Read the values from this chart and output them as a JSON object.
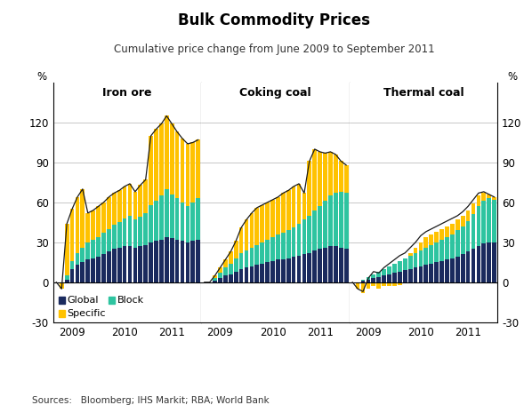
{
  "title": "Bulk Commodity Prices",
  "subtitle": "Cumulative price change from June 2009 to September 2011",
  "source": "Sources:   Bloomberg; IHS Markit; RBA; World Bank",
  "panels": [
    "Iron ore",
    "Coking coal",
    "Thermal coal"
  ],
  "ylim": [
    -30,
    150
  ],
  "yticks": [
    -30,
    0,
    30,
    60,
    90,
    120
  ],
  "colors": {
    "global": "#1a2a5e",
    "block": "#2ec4a0",
    "specific": "#ffc200",
    "line": "#1a1a1a"
  },
  "iron_ore": {
    "global": [
      0,
      0,
      2,
      10,
      13,
      15,
      17,
      18,
      19,
      21,
      23,
      25,
      26,
      27,
      27,
      26,
      27,
      28,
      30,
      31,
      32,
      34,
      33,
      32,
      31,
      30,
      31,
      32
    ],
    "block": [
      0,
      0,
      3,
      6,
      9,
      11,
      13,
      14,
      15,
      16,
      17,
      18,
      19,
      21,
      23,
      21,
      22,
      24,
      28,
      30,
      33,
      36,
      33,
      31,
      29,
      27,
      29,
      31
    ],
    "specific_pos": [
      0,
      0,
      39,
      39,
      42,
      44,
      22,
      22,
      23,
      23,
      24,
      24,
      24,
      24,
      24,
      21,
      24,
      25,
      52,
      54,
      54,
      55,
      53,
      50,
      48,
      47,
      45,
      44
    ],
    "specific_neg": [
      0,
      -5,
      0,
      0,
      0,
      0,
      0,
      0,
      0,
      0,
      0,
      0,
      0,
      0,
      0,
      0,
      0,
      0,
      0,
      0,
      0,
      0,
      0,
      0,
      0,
      0,
      0,
      0
    ],
    "total_line": [
      0,
      -5,
      44,
      55,
      64,
      70,
      52,
      54,
      57,
      60,
      64,
      67,
      69,
      72,
      74,
      68,
      73,
      77,
      110,
      115,
      119,
      125,
      119,
      113,
      108,
      104,
      105,
      107
    ]
  },
  "coking_coal": {
    "global": [
      0,
      0,
      1,
      3,
      5,
      6,
      8,
      10,
      11,
      12,
      13,
      14,
      15,
      16,
      17,
      17,
      18,
      19,
      20,
      21,
      22,
      24,
      25,
      26,
      27,
      27,
      26,
      25
    ],
    "block": [
      0,
      0,
      2,
      4,
      6,
      8,
      10,
      12,
      13,
      14,
      15,
      16,
      17,
      18,
      19,
      20,
      21,
      22,
      24,
      26,
      28,
      30,
      32,
      35,
      38,
      40,
      42,
      42
    ],
    "specific_pos": [
      0,
      0,
      2,
      4,
      6,
      9,
      13,
      19,
      23,
      26,
      28,
      28,
      28,
      28,
      28,
      30,
      30,
      31,
      30,
      20,
      41,
      46,
      41,
      36,
      33,
      29,
      23,
      21
    ],
    "specific_neg": [
      0,
      0,
      0,
      0,
      0,
      0,
      0,
      0,
      0,
      0,
      0,
      0,
      0,
      0,
      0,
      0,
      0,
      0,
      0,
      0,
      0,
      0,
      0,
      0,
      0,
      0,
      0,
      0
    ],
    "total_line": [
      0,
      0,
      5,
      11,
      17,
      23,
      31,
      41,
      47,
      52,
      56,
      58,
      60,
      62,
      64,
      67,
      69,
      72,
      74,
      67,
      91,
      100,
      98,
      97,
      98,
      96,
      91,
      88
    ]
  },
  "thermal_coal": {
    "global": [
      0,
      0,
      1,
      2,
      3,
      4,
      5,
      6,
      7,
      8,
      9,
      10,
      11,
      12,
      13,
      14,
      15,
      16,
      17,
      18,
      19,
      21,
      23,
      25,
      27,
      29,
      30,
      30
    ],
    "block": [
      0,
      0,
      1,
      2,
      3,
      4,
      5,
      6,
      7,
      8,
      9,
      10,
      11,
      12,
      13,
      14,
      15,
      16,
      17,
      18,
      20,
      21,
      23,
      26,
      30,
      32,
      33,
      32
    ],
    "specific_pos": [
      0,
      0,
      0,
      0,
      0,
      0,
      0,
      0,
      0,
      0,
      0,
      2,
      4,
      6,
      8,
      8,
      8,
      8,
      8,
      8,
      8,
      8,
      8,
      8,
      8,
      6,
      3,
      2
    ],
    "specific_neg": [
      0,
      -5,
      -8,
      -5,
      -3,
      -5,
      -3,
      -3,
      -3,
      -2,
      0,
      0,
      0,
      0,
      0,
      0,
      0,
      0,
      0,
      0,
      0,
      0,
      0,
      0,
      0,
      0,
      0,
      0
    ],
    "total_line": [
      0,
      -5,
      -7,
      3,
      8,
      7,
      11,
      14,
      17,
      20,
      22,
      26,
      30,
      35,
      38,
      40,
      42,
      44,
      46,
      48,
      50,
      53,
      57,
      62,
      67,
      68,
      66,
      64
    ]
  }
}
